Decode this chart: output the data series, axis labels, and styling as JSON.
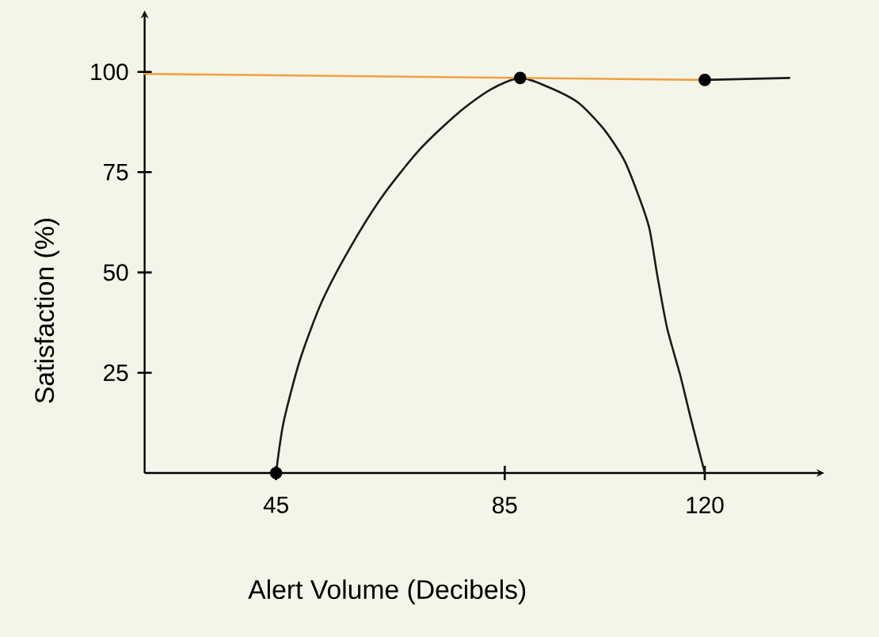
{
  "chart_data": {
    "type": "line",
    "xlabel": "Alert Volume (Decibels)",
    "ylabel": "Satisfaction (%)",
    "xlim": [
      22,
      140
    ],
    "ylim": [
      0,
      114
    ],
    "xticks": [
      45,
      85,
      120
    ],
    "yticks": [
      25,
      50,
      75,
      100
    ],
    "series": [
      {
        "color": "#1a1a1a",
        "x": [
          45,
          46.3,
          49.2,
          53,
          57.8,
          63.5,
          70.1,
          76.8,
          82.5,
          87.7,
          92.5,
          97.8,
          102.3,
          105.9,
          108.5,
          110.3,
          111.7,
          113.4,
          115.7,
          117.5,
          120
        ],
        "values": [
          0,
          12.6,
          28.3,
          42.7,
          55.8,
          68.8,
          80.6,
          89.7,
          95.6,
          98.5,
          96.3,
          92.4,
          85.8,
          78,
          68.8,
          61,
          49.2,
          36.2,
          24.4,
          13.9,
          0
        ]
      },
      {
        "color": "#f0a040",
        "x": [
          22,
          120
        ],
        "values": [
          99.5,
          98
        ]
      },
      {
        "color": "#1a1a1a",
        "x": [
          120,
          134.8
        ],
        "values": [
          98,
          98.5
        ]
      },
      {
        "type": "scatter",
        "color": "#000000",
        "marker": "circle",
        "x": [
          45,
          87.7,
          120
        ],
        "values": [
          0,
          98.5,
          98
        ]
      }
    ]
  }
}
